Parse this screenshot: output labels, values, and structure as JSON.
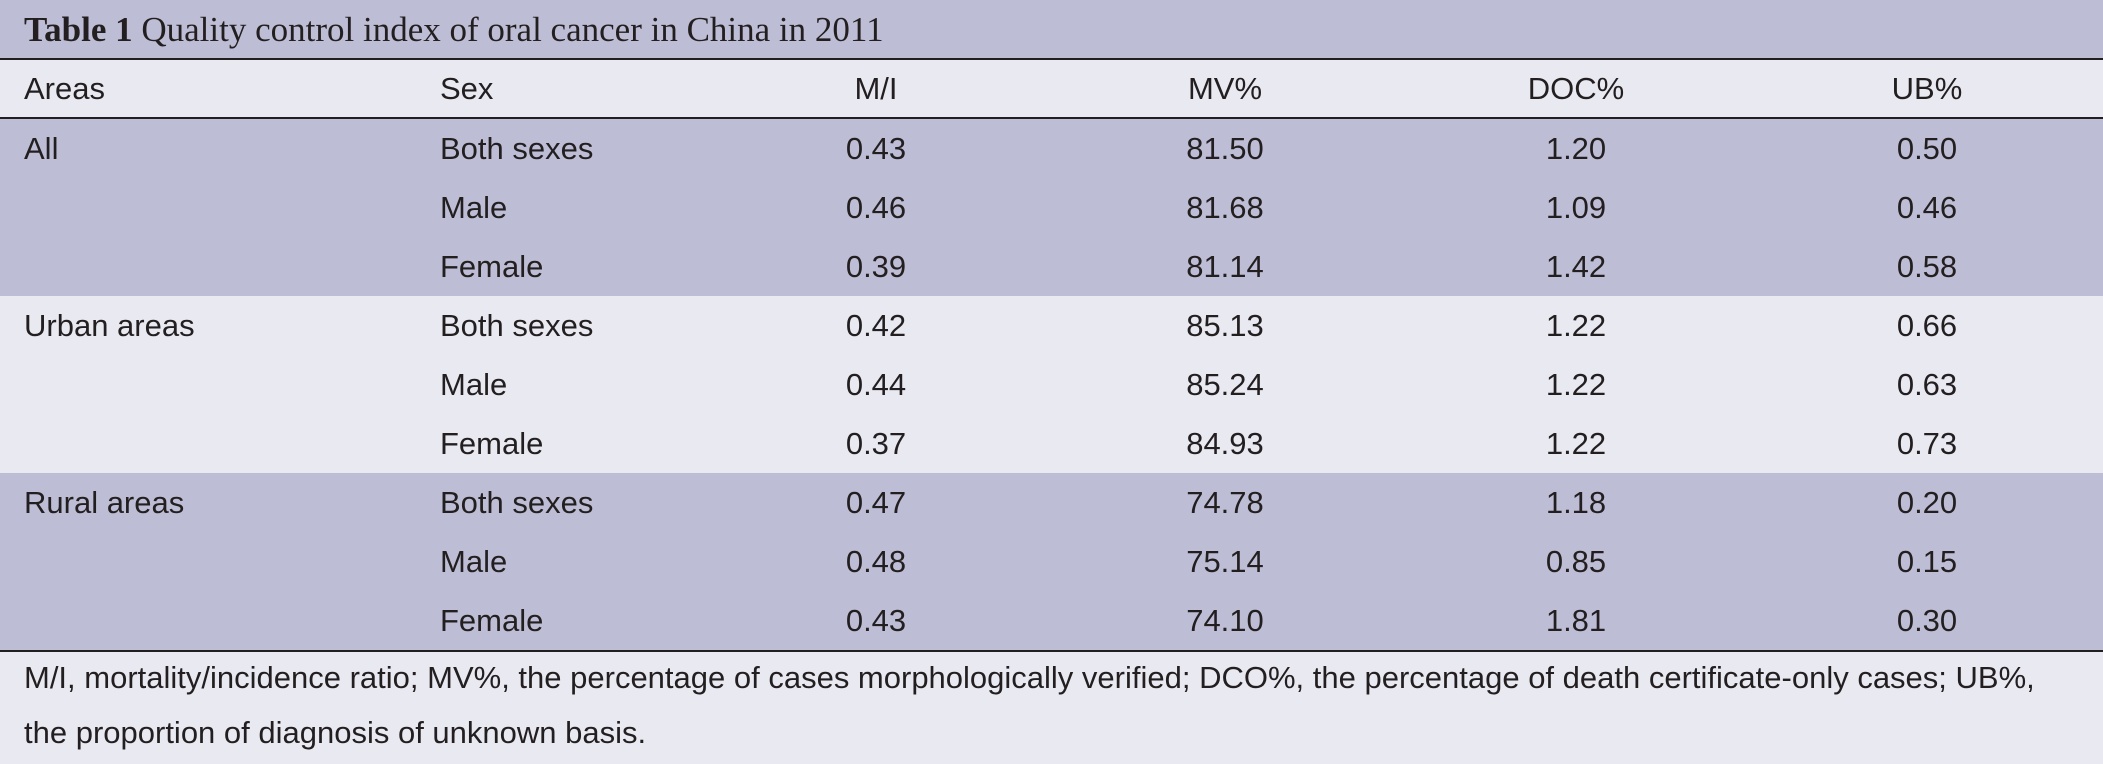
{
  "table": {
    "title_label": "Table 1",
    "title_text": "Quality control index of oral cancer in China in 2011",
    "columns": [
      "Areas",
      "Sex",
      "M/I",
      "MV%",
      "DOC%",
      "UB%"
    ],
    "groups": [
      {
        "area": "All",
        "rows": [
          {
            "sex": "Both sexes",
            "mi": "0.43",
            "mv": "81.50",
            "doc": "1.20",
            "ub": "0.50"
          },
          {
            "sex": "Male",
            "mi": "0.46",
            "mv": "81.68",
            "doc": "1.09",
            "ub": "0.46"
          },
          {
            "sex": "Female",
            "mi": "0.39",
            "mv": "81.14",
            "doc": "1.42",
            "ub": "0.58"
          }
        ]
      },
      {
        "area": "Urban areas",
        "rows": [
          {
            "sex": "Both sexes",
            "mi": "0.42",
            "mv": "85.13",
            "doc": "1.22",
            "ub": "0.66"
          },
          {
            "sex": "Male",
            "mi": "0.44",
            "mv": "85.24",
            "doc": "1.22",
            "ub": "0.63"
          },
          {
            "sex": "Female",
            "mi": "0.37",
            "mv": "84.93",
            "doc": "1.22",
            "ub": "0.73"
          }
        ]
      },
      {
        "area": "Rural areas",
        "rows": [
          {
            "sex": "Both sexes",
            "mi": "0.47",
            "mv": "74.78",
            "doc": "1.18",
            "ub": "0.20"
          },
          {
            "sex": "Male",
            "mi": "0.48",
            "mv": "75.14",
            "doc": "0.85",
            "ub": "0.15"
          },
          {
            "sex": "Female",
            "mi": "0.43",
            "mv": "74.10",
            "doc": "1.81",
            "ub": "0.30"
          }
        ]
      }
    ],
    "footnote": "M/I, mortality/incidence ratio; MV%, the percentage of cases morphologically verified; DCO%, the percentage of death certificate-only cases; UB%, the proportion of diagnosis of unknown basis."
  },
  "colors": {
    "band_shade": "#bdbdd5",
    "band_light": "#e9e9f2",
    "text": "#231f20"
  }
}
